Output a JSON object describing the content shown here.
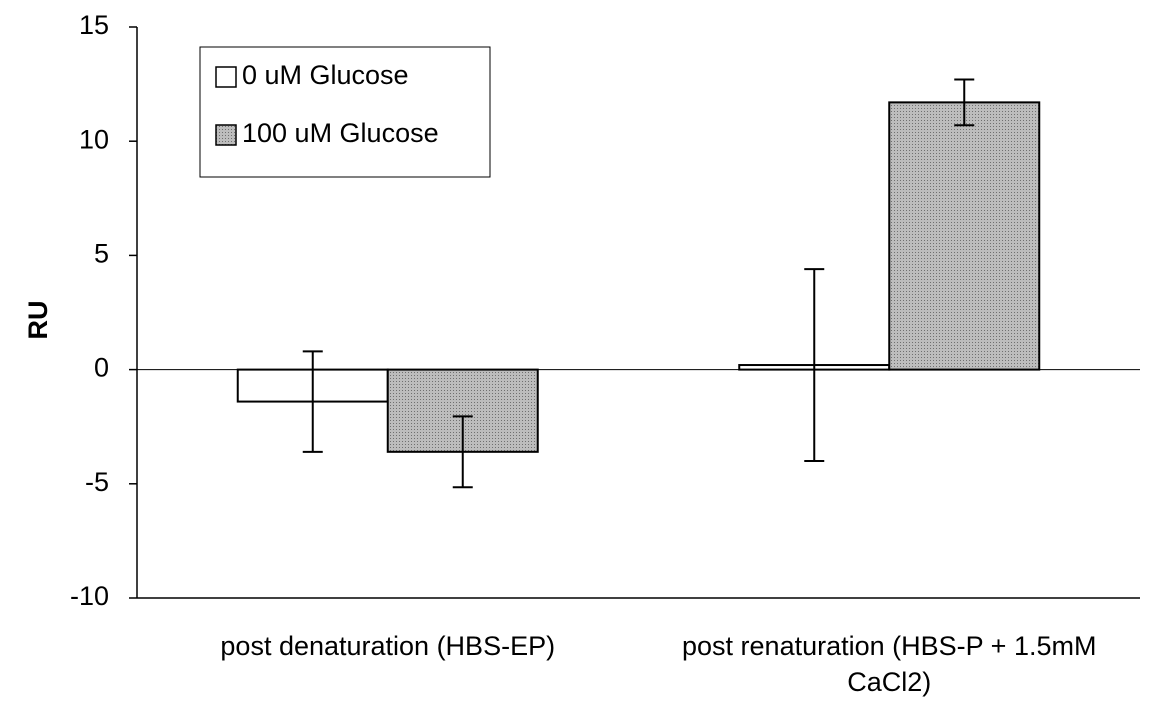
{
  "chart_data": {
    "type": "bar",
    "ylabel": "RU",
    "categories": [
      "post denaturation (HBS-EP)",
      "post renaturation (HBS-P + 1.5mM CaCl2)"
    ],
    "series": [
      {
        "name": "0 uM Glucose",
        "color": "#ffffff",
        "values": [
          -1.4,
          0.2
        ],
        "errors": [
          2.2,
          4.2
        ]
      },
      {
        "name": "100 uM Glucose",
        "color": "#aaaaaa",
        "values": [
          -3.6,
          11.7
        ],
        "errors": [
          1.55,
          1.0
        ]
      }
    ],
    "ylim": [
      -10,
      15
    ],
    "yticks": [
      -10,
      -5,
      0,
      5,
      10,
      15
    ],
    "grid": false,
    "legend": "upper left"
  }
}
